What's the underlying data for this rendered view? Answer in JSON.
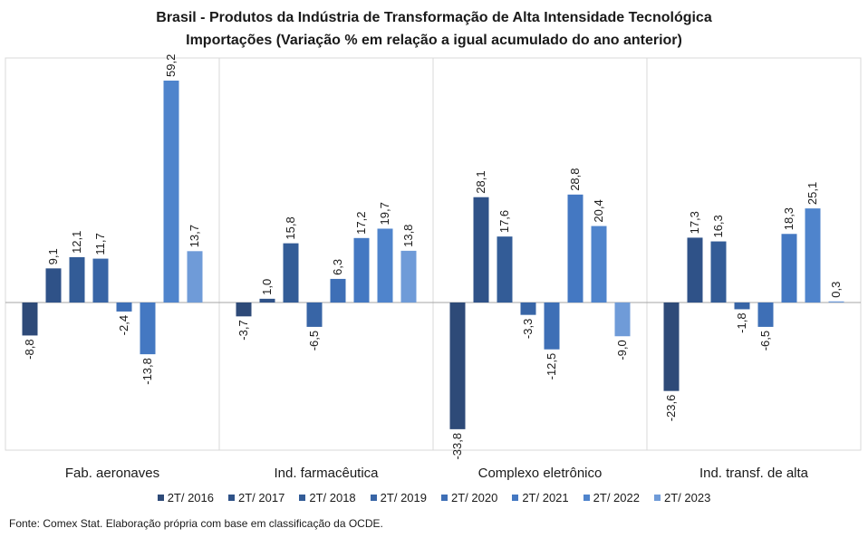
{
  "chart_data": {
    "type": "bar",
    "title": "Brasil - Produtos da Indústria de Transformação  de Alta Intensidade Tecnológica",
    "subtitle": "Importações  (Variação % em relação a igual acumulado do ano anterior)",
    "categories": [
      "Fab. aeronaves",
      "Ind. farmacêutica",
      "Complexo eletrônico",
      "Ind. transf. de alta"
    ],
    "series": [
      {
        "name": "2T/ 2016",
        "color": "#2e4a78",
        "values": [
          -8.8,
          -3.7,
          -33.8,
          -23.6
        ]
      },
      {
        "name": "2T/ 2017",
        "color": "#2f5288",
        "values": [
          9.1,
          1.0,
          28.1,
          17.3
        ]
      },
      {
        "name": "2T/ 2018",
        "color": "#335c97",
        "values": [
          12.1,
          15.8,
          17.6,
          16.3
        ]
      },
      {
        "name": "2T/ 2019",
        "color": "#3865a6",
        "values": [
          11.7,
          -6.5,
          -3.3,
          -1.8
        ]
      },
      {
        "name": "2T/ 2020",
        "color": "#3e6fb6",
        "values": [
          -2.4,
          6.3,
          -12.5,
          -6.5
        ]
      },
      {
        "name": "2T/ 2021",
        "color": "#4478c2",
        "values": [
          -13.8,
          17.2,
          28.8,
          18.3
        ]
      },
      {
        "name": "2T/ 2022",
        "color": "#4f84cc",
        "values": [
          59.2,
          19.7,
          20.4,
          25.1
        ]
      },
      {
        "name": "2T/ 2023",
        "color": "#6f9bd8",
        "values": [
          13.7,
          13.8,
          -9.0,
          0.3
        ]
      }
    ],
    "data_labels": [
      [
        "-8,8",
        "9,1",
        "12,1",
        "11,7",
        "-2,4",
        "-13,8",
        "59,2",
        "13,7"
      ],
      [
        "-3,7",
        "1,0",
        "15,8",
        "-6,5",
        "6,3",
        "17,2",
        "19,7",
        "13,8"
      ],
      [
        "-33,8",
        "28,1",
        "17,6",
        "-3,3",
        "-12,5",
        "28,8",
        "20,4",
        "-9,0"
      ],
      [
        "-23,6",
        "17,3",
        "16,3",
        "-1,8",
        "-6,5",
        "18,3",
        "25,1",
        "0,3"
      ]
    ],
    "ylim": [
      -36,
      64
    ],
    "grid": false,
    "legend_position": "bottom"
  },
  "source": "Fonte: Comex Stat. Elaboração própria com base em classificação da OCDE."
}
